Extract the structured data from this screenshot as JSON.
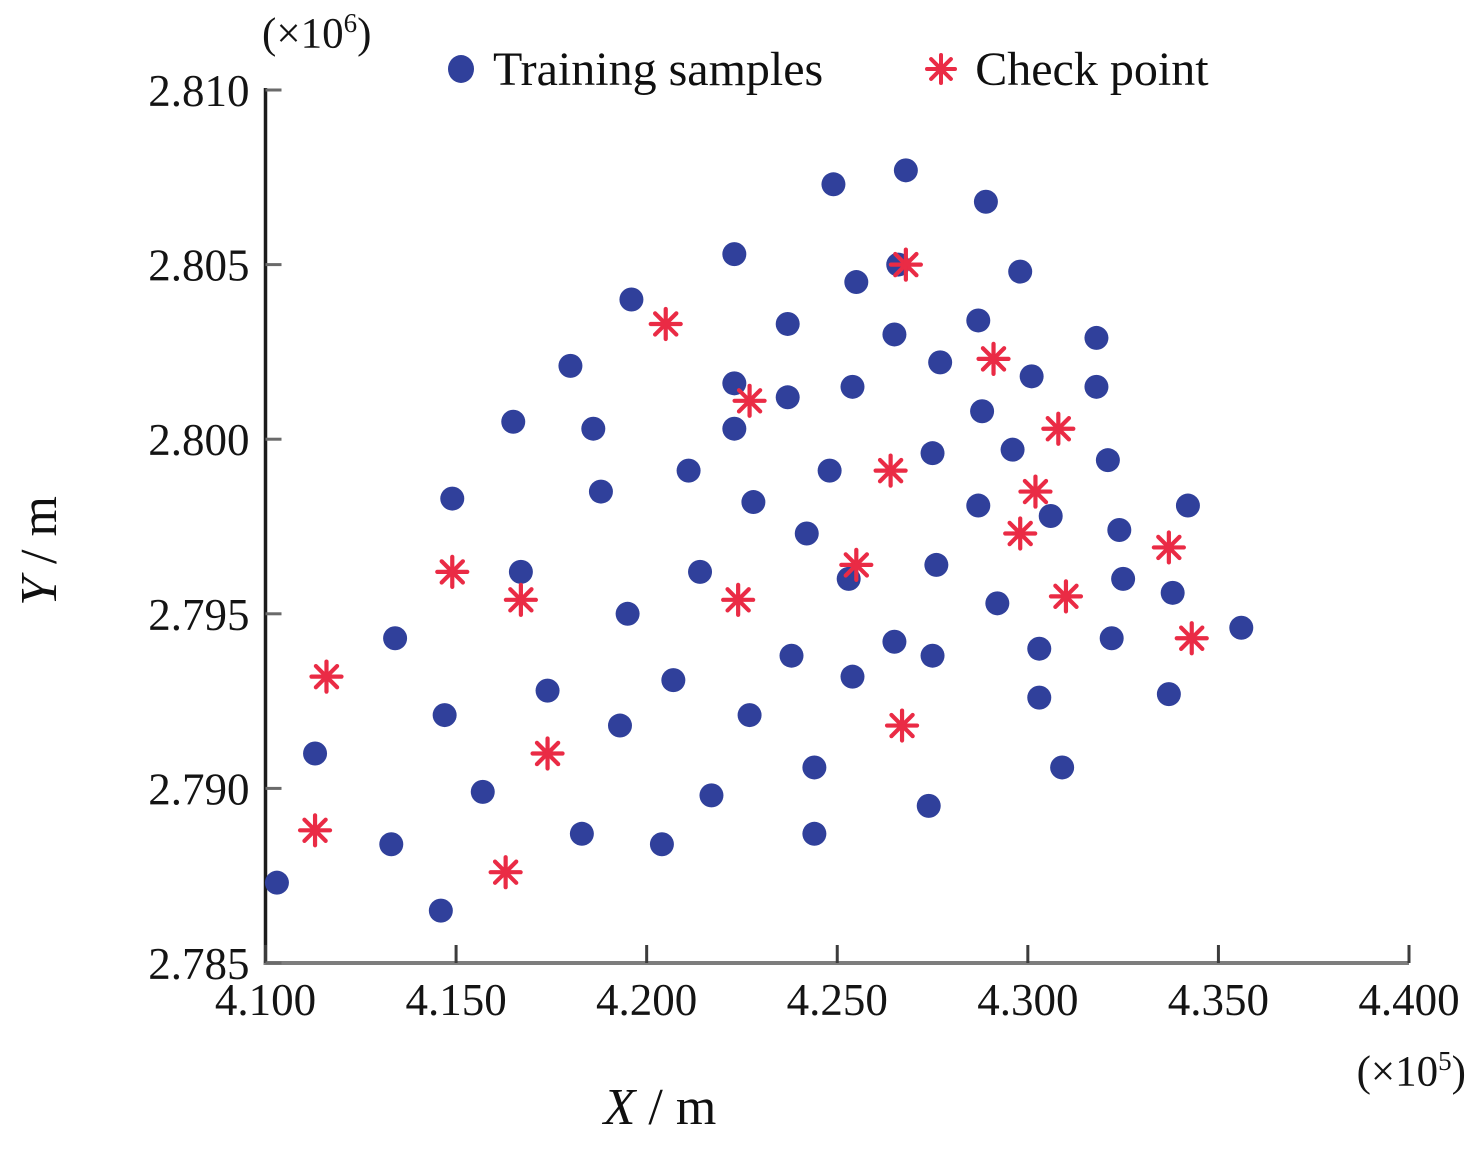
{
  "figure": {
    "y_multiplier_base": "(×10",
    "y_multiplier_exp": "6",
    "y_multiplier_close": ")",
    "x_multiplier_base": "(×10",
    "x_multiplier_exp": "5",
    "x_multiplier_close": ")"
  },
  "legend": {
    "items": [
      {
        "label": "Training samples",
        "marker": "dot",
        "color": "#30409B"
      },
      {
        "label": "Check point",
        "marker": "asterisk",
        "color": "#EA2B45"
      }
    ]
  },
  "axes": {
    "x": {
      "label_var": "X",
      "label_unit": " / m",
      "min": 4.1,
      "max": 4.4,
      "ticks": [
        "4.100",
        "4.150",
        "4.200",
        "4.250",
        "4.300",
        "4.350",
        "4.400"
      ]
    },
    "y": {
      "label_var": "Y",
      "label_unit": " / m",
      "min": 2.785,
      "max": 2.81,
      "ticks": [
        "2.785",
        "2.790",
        "2.795",
        "2.800",
        "2.805",
        "2.810"
      ]
    }
  },
  "chart_data": {
    "type": "scatter",
    "title": "",
    "xlabel": "X / m",
    "ylabel": "Y / m",
    "x_scale_note": "(×10^5)",
    "y_scale_note": "(×10^6)",
    "xlim": [
      4.1,
      4.4
    ],
    "ylim": [
      2.785,
      2.81
    ],
    "grid": false,
    "legend_position": "top",
    "series": [
      {
        "name": "Training samples",
        "marker": "circle",
        "color": "#30409B",
        "points": [
          [
            4.249,
            2.8073
          ],
          [
            4.268,
            2.8077
          ],
          [
            4.289,
            2.8068
          ],
          [
            4.223,
            2.8053
          ],
          [
            4.255,
            2.8045
          ],
          [
            4.266,
            2.805
          ],
          [
            4.298,
            2.8048
          ],
          [
            4.196,
            2.804
          ],
          [
            4.237,
            2.8033
          ],
          [
            4.265,
            2.803
          ],
          [
            4.287,
            2.8034
          ],
          [
            4.18,
            2.8021
          ],
          [
            4.277,
            2.8022
          ],
          [
            4.318,
            2.8029
          ],
          [
            4.223,
            2.8016
          ],
          [
            4.237,
            2.8012
          ],
          [
            4.254,
            2.8015
          ],
          [
            4.301,
            2.8018
          ],
          [
            4.318,
            2.8015
          ],
          [
            4.165,
            2.8005
          ],
          [
            4.186,
            2.8003
          ],
          [
            4.223,
            2.8003
          ],
          [
            4.288,
            2.8008
          ],
          [
            4.296,
            2.7997
          ],
          [
            4.275,
            2.7996
          ],
          [
            4.321,
            2.7994
          ],
          [
            4.211,
            2.7991
          ],
          [
            4.248,
            2.7991
          ],
          [
            4.149,
            2.7983
          ],
          [
            4.188,
            2.7985
          ],
          [
            4.228,
            2.7982
          ],
          [
            4.287,
            2.7981
          ],
          [
            4.306,
            2.7978
          ],
          [
            4.324,
            2.7974
          ],
          [
            4.342,
            2.7981
          ],
          [
            4.242,
            2.7973
          ],
          [
            4.167,
            2.7962
          ],
          [
            4.214,
            2.7962
          ],
          [
            4.253,
            2.796
          ],
          [
            4.276,
            2.7964
          ],
          [
            4.325,
            2.796
          ],
          [
            4.338,
            2.7956
          ],
          [
            4.195,
            2.795
          ],
          [
            4.292,
            2.7953
          ],
          [
            4.356,
            2.7946
          ],
          [
            4.134,
            2.7943
          ],
          [
            4.238,
            2.7938
          ],
          [
            4.265,
            2.7942
          ],
          [
            4.275,
            2.7938
          ],
          [
            4.303,
            2.794
          ],
          [
            4.322,
            2.7943
          ],
          [
            4.207,
            2.7931
          ],
          [
            4.254,
            2.7932
          ],
          [
            4.174,
            2.7928
          ],
          [
            4.303,
            2.7926
          ],
          [
            4.337,
            2.7927
          ],
          [
            4.147,
            2.7921
          ],
          [
            4.227,
            2.7921
          ],
          [
            4.193,
            2.7918
          ],
          [
            4.113,
            2.791
          ],
          [
            4.309,
            2.7906
          ],
          [
            4.244,
            2.7906
          ],
          [
            4.157,
            2.7899
          ],
          [
            4.217,
            2.7898
          ],
          [
            4.274,
            2.7895
          ],
          [
            4.183,
            2.7887
          ],
          [
            4.244,
            2.7887
          ],
          [
            4.133,
            2.7884
          ],
          [
            4.204,
            2.7884
          ],
          [
            4.103,
            2.7873
          ],
          [
            4.146,
            2.7865
          ]
        ]
      },
      {
        "name": "Check point",
        "marker": "asterisk",
        "color": "#EA2B45",
        "points": [
          [
            4.268,
            2.805
          ],
          [
            4.205,
            2.8033
          ],
          [
            4.291,
            2.8023
          ],
          [
            4.227,
            2.8011
          ],
          [
            4.308,
            2.8003
          ],
          [
            4.264,
            2.7991
          ],
          [
            4.302,
            2.7985
          ],
          [
            4.298,
            2.7973
          ],
          [
            4.337,
            2.7969
          ],
          [
            4.255,
            2.7964
          ],
          [
            4.149,
            2.7962
          ],
          [
            4.31,
            2.7955
          ],
          [
            4.167,
            2.7954
          ],
          [
            4.224,
            2.7954
          ],
          [
            4.343,
            2.7943
          ],
          [
            4.116,
            2.7932
          ],
          [
            4.267,
            2.7918
          ],
          [
            4.174,
            2.791
          ],
          [
            4.113,
            2.7888
          ],
          [
            4.163,
            2.7876
          ]
        ]
      }
    ]
  }
}
